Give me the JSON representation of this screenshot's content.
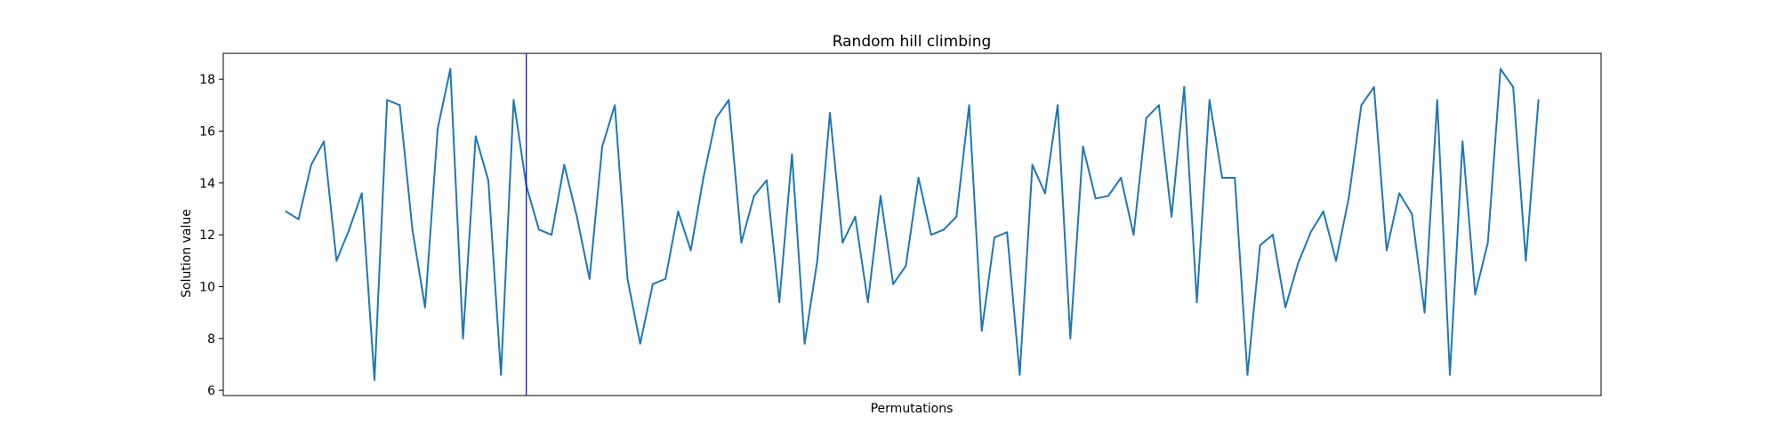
{
  "chart_data": {
    "type": "line",
    "title": "Random hill climbing",
    "xlabel": "Permutations",
    "ylabel": "Solution value",
    "ylim": [
      5.8,
      19.0
    ],
    "yticks": [
      6,
      8,
      10,
      12,
      14,
      16,
      18
    ],
    "x_ticks_visible": false,
    "grid": false,
    "marker_x": 19,
    "colors": {
      "series": "#1f77b4",
      "marker": "#0000cc"
    },
    "series": [
      {
        "values": [
          12.9,
          12.6,
          14.7,
          15.6,
          11.0,
          12.2,
          13.6,
          6.4,
          17.2,
          17.0,
          12.2,
          9.2,
          16.1,
          18.4,
          8.0,
          15.8,
          14.1,
          6.6,
          17.2,
          13.9,
          12.2,
          12.0,
          14.7,
          12.7,
          10.3,
          15.4,
          17.0,
          10.3,
          7.8,
          10.1,
          10.3,
          12.9,
          11.4,
          14.2,
          16.5,
          17.2,
          11.7,
          13.5,
          14.1,
          9.4,
          15.1,
          7.8,
          11.0,
          16.7,
          11.7,
          12.7,
          9.4,
          13.5,
          10.1,
          10.8,
          14.2,
          12.0,
          12.2,
          12.7,
          17.0,
          8.3,
          11.9,
          12.1,
          6.6,
          14.7,
          13.6,
          17.0,
          8.0,
          15.4,
          13.4,
          13.5,
          14.2,
          12.0,
          16.5,
          17.0,
          12.7,
          17.7,
          9.4,
          17.2,
          14.2,
          14.2,
          6.6,
          11.6,
          12.0,
          9.2,
          10.9,
          12.1,
          12.9,
          11.0,
          13.4,
          17.0,
          17.7,
          11.4,
          13.6,
          12.8,
          9.0,
          17.2,
          6.6,
          15.6,
          9.7,
          11.7,
          18.4,
          17.7,
          11.0,
          17.2
        ]
      }
    ]
  }
}
